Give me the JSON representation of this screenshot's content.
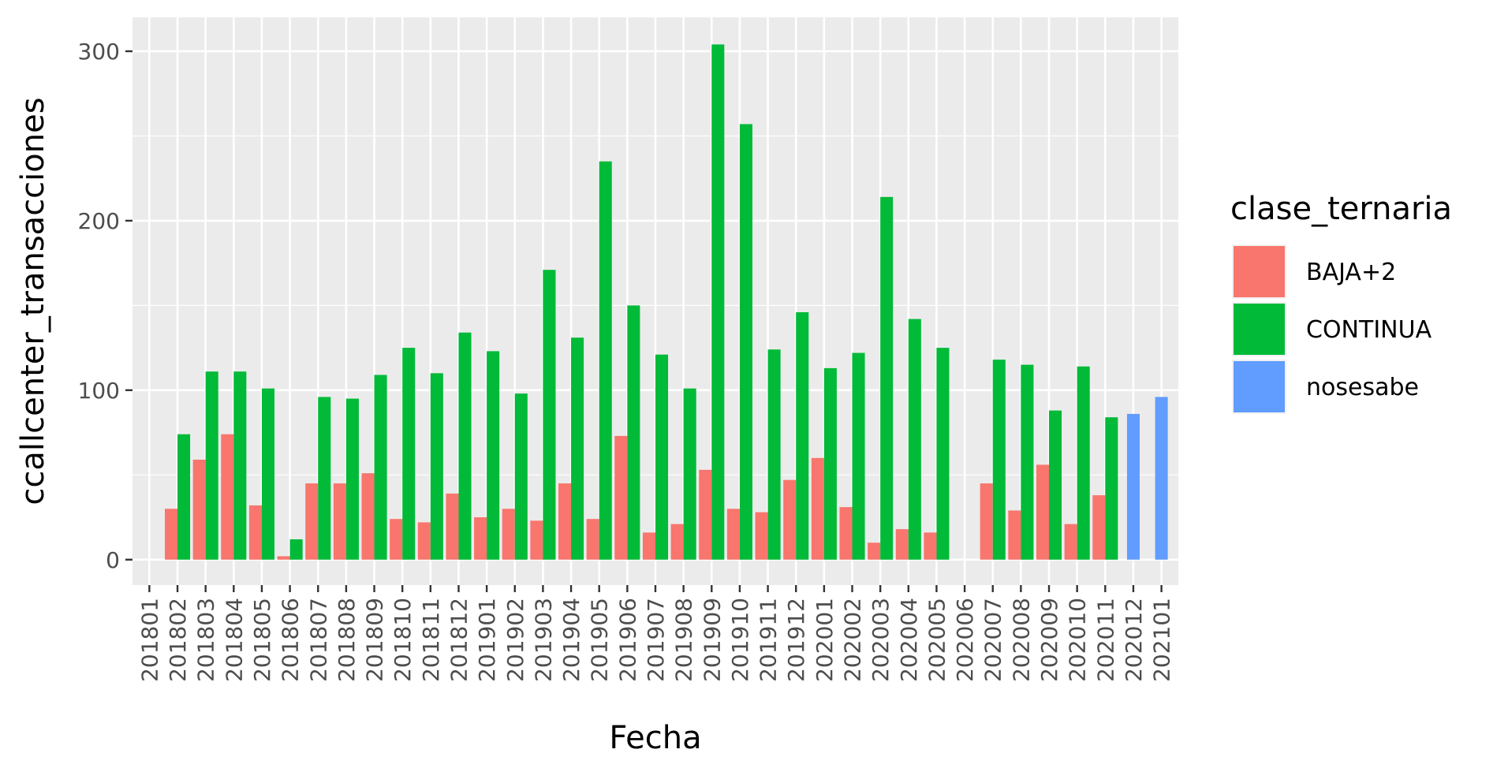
{
  "chart_data": {
    "type": "bar",
    "xlabel": "Fecha",
    "ylabel": "ccallcenter_transacciones",
    "ylim": [
      -15,
      320
    ],
    "yticks": [
      0,
      100,
      200,
      300
    ],
    "grid": true,
    "legend_title": "clase_ternaria",
    "legend_position": "right",
    "categories": [
      "201801",
      "201802",
      "201803",
      "201804",
      "201805",
      "201806",
      "201807",
      "201808",
      "201809",
      "201810",
      "201811",
      "201812",
      "201901",
      "201902",
      "201903",
      "201904",
      "201905",
      "201906",
      "201907",
      "201908",
      "201909",
      "201910",
      "201911",
      "201912",
      "202001",
      "202002",
      "202003",
      "202004",
      "202005",
      "202006",
      "202007",
      "202008",
      "202009",
      "202010",
      "202011",
      "202012",
      "202101"
    ],
    "series": [
      {
        "name": "BAJA+2",
        "color": "#F8766D",
        "values": [
          null,
          30,
          59,
          74,
          32,
          2,
          45,
          45,
          51,
          24,
          22,
          39,
          25,
          30,
          23,
          45,
          24,
          73,
          16,
          21,
          53,
          30,
          28,
          47,
          60,
          31,
          10,
          18,
          16,
          null,
          45,
          29,
          56,
          21,
          38,
          null,
          null
        ]
      },
      {
        "name": "CONTINUA",
        "color": "#00BA38",
        "values": [
          null,
          74,
          111,
          111,
          101,
          12,
          96,
          95,
          109,
          125,
          110,
          134,
          123,
          98,
          171,
          131,
          235,
          150,
          121,
          101,
          304,
          257,
          124,
          146,
          113,
          122,
          214,
          142,
          125,
          null,
          118,
          115,
          88,
          114,
          84,
          null,
          null
        ]
      },
      {
        "name": "nosesabe",
        "color": "#619CFF",
        "values": [
          null,
          null,
          null,
          null,
          null,
          null,
          null,
          null,
          null,
          null,
          null,
          null,
          null,
          null,
          null,
          null,
          null,
          null,
          null,
          null,
          null,
          null,
          null,
          null,
          null,
          null,
          null,
          null,
          null,
          null,
          null,
          null,
          null,
          null,
          null,
          86,
          96
        ]
      }
    ]
  }
}
